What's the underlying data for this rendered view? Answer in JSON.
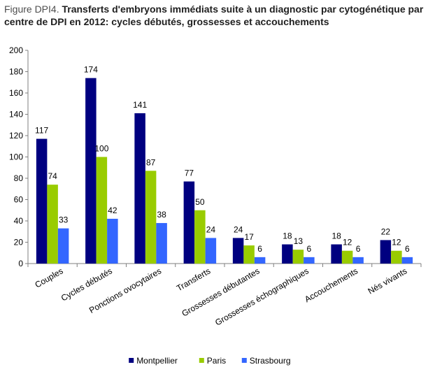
{
  "title_prefix": "Figure DPI4.",
  "title": "Transferts d'embryons immédiats suite à un diagnostic par cytogénétique par centre de DPI en 2012: cycles débutés, grossesses et accouchements",
  "chart_data": {
    "type": "bar",
    "categories": [
      "Couples",
      "Cycles débutés",
      "Ponctions ovocytaires",
      "Transferts",
      "Grossesses débutantes",
      "Grossesses échographiques",
      "Accouchements",
      "Nés vivants"
    ],
    "series": [
      {
        "name": "Montpellier",
        "color": "#000080",
        "values": [
          117,
          174,
          141,
          77,
          24,
          18,
          18,
          22
        ]
      },
      {
        "name": "Paris",
        "color": "#99cc00",
        "values": [
          74,
          100,
          87,
          50,
          17,
          13,
          12,
          12
        ]
      },
      {
        "name": "Strasbourg",
        "color": "#3366ff",
        "values": [
          33,
          42,
          38,
          24,
          6,
          6,
          6,
          6
        ]
      }
    ],
    "ylim": [
      0,
      200
    ],
    "yticks": [
      0,
      20,
      40,
      60,
      80,
      100,
      120,
      140,
      160,
      180,
      200
    ],
    "grid": false,
    "legend": "bottom"
  }
}
